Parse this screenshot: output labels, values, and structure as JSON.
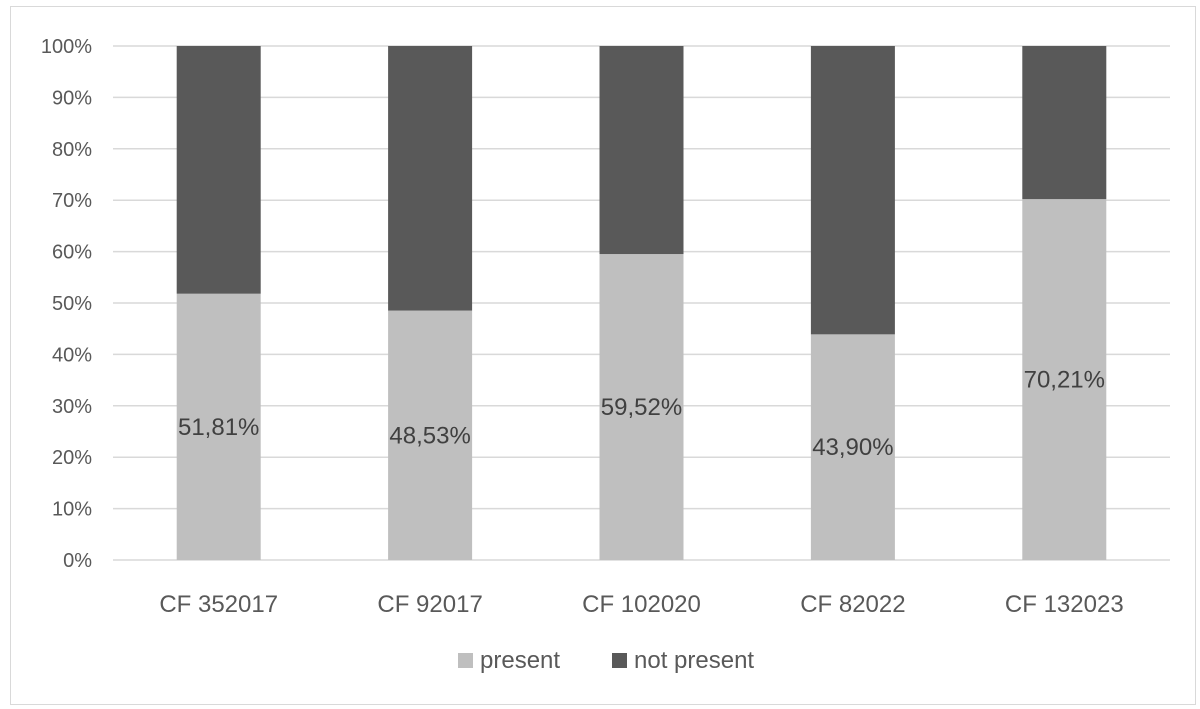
{
  "chart_data": {
    "type": "bar",
    "stacked": true,
    "percent_stacked": true,
    "categories": [
      "CF 352017",
      "CF 92017",
      "CF 102020",
      "CF 82022",
      "CF 132023"
    ],
    "series": [
      {
        "name": "present",
        "values": [
          51.81,
          48.53,
          59.52,
          43.9,
          70.21
        ],
        "color": "#bfbfbf"
      },
      {
        "name": "not present",
        "values": [
          48.19,
          51.47,
          40.48,
          56.1,
          29.79
        ],
        "color": "#595959"
      }
    ],
    "data_labels": [
      "51,81%",
      "48,53%",
      "59,52%",
      "43,90%",
      "70,21%"
    ],
    "y_ticks": [
      "0%",
      "10%",
      "20%",
      "30%",
      "40%",
      "50%",
      "60%",
      "70%",
      "80%",
      "90%",
      "100%"
    ],
    "ylim": [
      0,
      100
    ],
    "grid": true,
    "legend_position": "bottom"
  }
}
